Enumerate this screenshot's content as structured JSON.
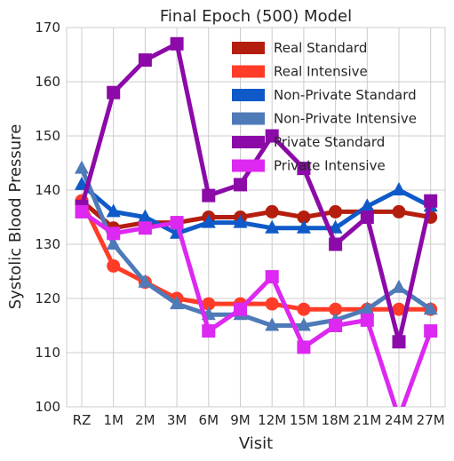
{
  "chart_data": {
    "type": "line",
    "title": "Final Epoch (500) Model",
    "xlabel": "Visit",
    "ylabel": "Systolic Blood Pressure",
    "ylim": [
      100,
      170
    ],
    "yticks": [
      100,
      110,
      120,
      130,
      140,
      150,
      160,
      170
    ],
    "categories": [
      "RZ",
      "1M",
      "2M",
      "3M",
      "6M",
      "9M",
      "12M",
      "15M",
      "18M",
      "21M",
      "24M",
      "27M"
    ],
    "grid": true,
    "legend_position": "top-right",
    "series": [
      {
        "name": "Real Standard",
        "color": "#b41e0f",
        "marker": "circle",
        "values": [
          138,
          133,
          134,
          134,
          135,
          135,
          136,
          135,
          136,
          136,
          136,
          135
        ]
      },
      {
        "name": "Real Intensive",
        "color": "#ff3c28",
        "marker": "circle",
        "values": [
          138,
          126,
          123,
          120,
          119,
          119,
          119,
          118,
          118,
          118,
          118,
          118
        ]
      },
      {
        "name": "Non-Private Standard",
        "color": "#0f5ac8",
        "marker": "triangle",
        "values": [
          141,
          136,
          135,
          132,
          134,
          134,
          133,
          133,
          133,
          137,
          140,
          137
        ]
      },
      {
        "name": "Non-Private Intensive",
        "color": "#4f7ab8",
        "marker": "triangle",
        "values": [
          144,
          130,
          123,
          119,
          117,
          117,
          115,
          115,
          116,
          118,
          122,
          118
        ]
      },
      {
        "name": "Private Standard",
        "color": "#8c0aa8",
        "marker": "square",
        "values": [
          137,
          158,
          164,
          167,
          139,
          141,
          150,
          144,
          130,
          135,
          112,
          138
        ]
      },
      {
        "name": "Private Intensive",
        "color": "#dc28f0",
        "marker": "square",
        "values": [
          136,
          132,
          133,
          134,
          114,
          118,
          124,
          111,
          115,
          116,
          98,
          114
        ]
      }
    ]
  }
}
